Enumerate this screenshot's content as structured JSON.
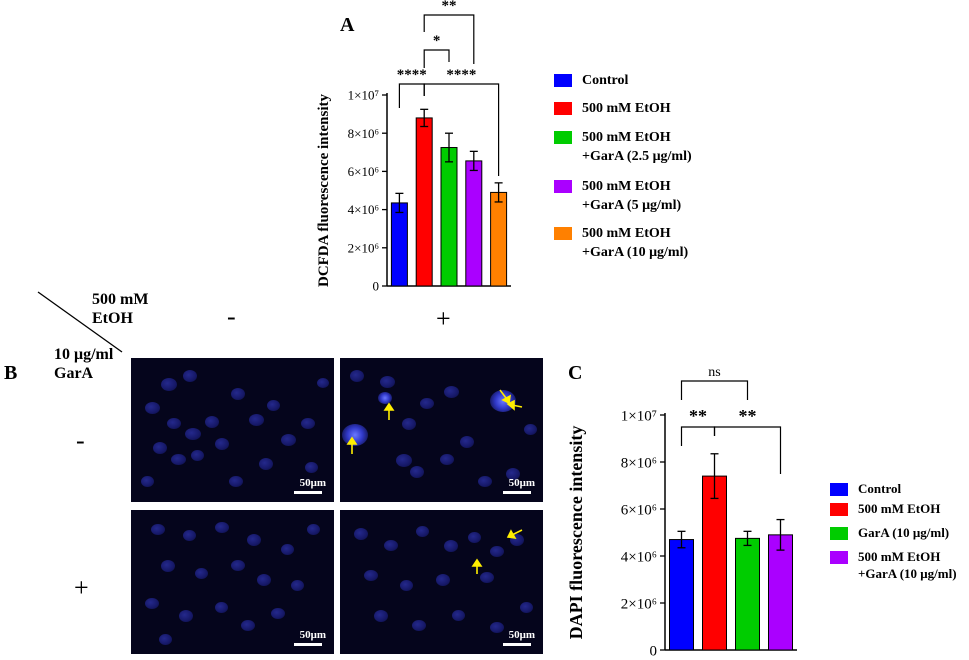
{
  "chart_data": [
    {
      "panel": "A",
      "type": "bar",
      "ylabel": "DCFDA fluorescence intensity",
      "ylim": [
        0,
        10000000
      ],
      "ytick_labels": [
        "0",
        "2×10⁶",
        "4×10⁶",
        "6×10⁶",
        "8×10⁶",
        "1×10⁷"
      ],
      "categories": [
        "Control",
        "500 mM EtOH",
        "500 mM EtOH +GarA (2.5 μg/ml)",
        "500 mM EtOH +GarA (5 μg/ml)",
        "500 mM EtOH +GarA (10 μg/ml)"
      ],
      "values": [
        4350000,
        8800000,
        7250000,
        6550000,
        4900000
      ],
      "errors": [
        500000,
        450000,
        750000,
        500000,
        500000
      ],
      "colors": [
        "#0000ff",
        "#ff0000",
        "#00cc00",
        "#aa00ff",
        "#ff8000"
      ],
      "legend": [
        [
          "Control"
        ],
        [
          "500 mM EtOH"
        ],
        [
          "500 mM EtOH",
          "+GarA (2.5 μg/ml)"
        ],
        [
          "500 mM EtOH",
          "+GarA (5 μg/ml)"
        ],
        [
          "500 mM EtOH",
          "+GarA (10 μg/ml)"
        ]
      ],
      "significance": [
        {
          "from": 0,
          "to": 1,
          "label": "****"
        },
        {
          "from": 1,
          "to": 2,
          "label": "*"
        },
        {
          "from": 1,
          "to": 3,
          "label": "**"
        },
        {
          "from": 1,
          "to": 4,
          "label": "****"
        }
      ]
    },
    {
      "panel": "C",
      "type": "bar",
      "ylabel": "DAPI fluorescence intensity",
      "ylim": [
        0,
        10000000
      ],
      "ytick_labels": [
        "0",
        "2×10⁶",
        "4×10⁶",
        "6×10⁶",
        "8×10⁶",
        "1×10⁷"
      ],
      "categories": [
        "Control",
        "500 mM EtOH",
        "GarA (10 μg/ml)",
        "500 mM EtOH +GarA (10 μg/ml)"
      ],
      "values": [
        4700000,
        7400000,
        4750000,
        4900000
      ],
      "errors": [
        350000,
        950000,
        300000,
        650000
      ],
      "colors": [
        "#0000ff",
        "#ff0000",
        "#00cc00",
        "#aa00ff"
      ],
      "legend": [
        [
          "Control"
        ],
        [
          "500 mM EtOH"
        ],
        [
          "GarA (10 μg/ml)"
        ],
        [
          "500 mM EtOH",
          "+GarA (10 μg/ml)"
        ]
      ],
      "significance": [
        {
          "from": 0,
          "to": 2,
          "label": "ns"
        },
        {
          "from": 0,
          "to": 1,
          "label": "**"
        },
        {
          "from": 1,
          "to": 3,
          "label": "**"
        }
      ]
    }
  ],
  "panel_a_label": "A",
  "panel_b_label": "B",
  "panel_c_label": "C",
  "grid": {
    "etoh_header_line1": "500 mM",
    "etoh_header_line2": "EtOH",
    "gara_header_line1": "10 μg/ml",
    "gara_header_line2": "GarA",
    "col_minus": "-",
    "col_plus": "+",
    "row_minus": "-",
    "row_plus": "+",
    "scale_label": "50μm"
  }
}
